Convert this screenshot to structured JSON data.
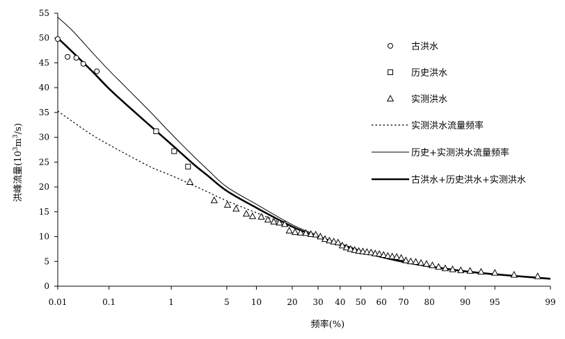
{
  "chart_data": {
    "type": "scatter",
    "title": "",
    "xlabel": "频率(%)",
    "ylabel_main": "洪峰流量(10",
    "ylabel_sup1": "3",
    "ylabel_mid": "m",
    "ylabel_sup2": "3",
    "ylabel_end": "/s)",
    "x_scale": "probability",
    "ylim": [
      0,
      55
    ],
    "y_ticks": [
      0,
      5,
      10,
      15,
      20,
      25,
      30,
      35,
      40,
      45,
      50,
      55
    ],
    "x_ticks": [
      {
        "value": 0.01,
        "label": "0.01"
      },
      {
        "value": 0.1,
        "label": "0.1"
      },
      {
        "value": 1,
        "label": "1"
      },
      {
        "value": 5,
        "label": "5"
      },
      {
        "value": 10,
        "label": "10"
      },
      {
        "value": 20,
        "label": "20"
      },
      {
        "value": 30,
        "label": "30"
      },
      {
        "value": 40,
        "label": "40"
      },
      {
        "value": 50,
        "label": "50"
      },
      {
        "value": 60,
        "label": "60"
      },
      {
        "value": 70,
        "label": "70"
      },
      {
        "value": 80,
        "label": "80"
      },
      {
        "value": 90,
        "label": "90"
      },
      {
        "value": 95,
        "label": "95"
      },
      {
        "value": 99,
        "label": "99"
      }
    ],
    "grid": false,
    "legend_position": "right",
    "series": [
      {
        "name": "古洪水",
        "kind": "points",
        "marker": "circle",
        "points": [
          [
            0.01,
            49.8
          ],
          [
            0.016,
            46.2
          ],
          [
            0.024,
            46.0
          ],
          [
            0.033,
            44.8
          ],
          [
            0.06,
            43.3
          ]
        ]
      },
      {
        "name": "历史洪水",
        "kind": "points",
        "marker": "square",
        "points": [
          [
            0.6,
            31.2
          ],
          [
            1.1,
            27.2
          ],
          [
            1.7,
            24.1
          ]
        ]
      },
      {
        "name": "实测洪水",
        "kind": "points",
        "marker": "triangle",
        "points": [
          [
            1.8,
            21.0
          ],
          [
            3.6,
            17.3
          ],
          [
            5.1,
            16.4
          ],
          [
            6.3,
            15.6
          ],
          [
            8.0,
            14.6
          ],
          [
            9.2,
            14.1
          ],
          [
            11.1,
            14.0
          ],
          [
            12.7,
            13.4
          ],
          [
            14.3,
            13.0
          ],
          [
            15.9,
            12.8
          ],
          [
            17.5,
            12.5
          ],
          [
            19.0,
            11.2
          ],
          [
            21.0,
            10.9
          ],
          [
            23.0,
            10.8
          ],
          [
            25.0,
            10.7
          ],
          [
            27.0,
            10.5
          ],
          [
            29.0,
            10.4
          ],
          [
            31.0,
            10.0
          ],
          [
            33.0,
            9.5
          ],
          [
            35.0,
            9.2
          ],
          [
            37.0,
            9.0
          ],
          [
            39.0,
            8.8
          ],
          [
            41.0,
            8.2
          ],
          [
            43.0,
            7.8
          ],
          [
            45.0,
            7.5
          ],
          [
            47.0,
            7.3
          ],
          [
            49.0,
            7.1
          ],
          [
            51.0,
            7.0
          ],
          [
            53.0,
            6.9
          ],
          [
            55.0,
            6.8
          ],
          [
            57.0,
            6.6
          ],
          [
            59.0,
            6.5
          ],
          [
            61.0,
            6.3
          ],
          [
            63.0,
            6.1
          ],
          [
            65.0,
            6.0
          ],
          [
            67.0,
            5.9
          ],
          [
            69.0,
            5.7
          ],
          [
            71.0,
            5.2
          ],
          [
            73.0,
            5.0
          ],
          [
            75.0,
            4.9
          ],
          [
            77.0,
            4.7
          ],
          [
            79.0,
            4.5
          ],
          [
            81.0,
            4.2
          ],
          [
            83.0,
            3.9
          ],
          [
            85.0,
            3.6
          ],
          [
            87.0,
            3.4
          ],
          [
            89.0,
            3.2
          ],
          [
            91.0,
            3.1
          ],
          [
            93.0,
            2.9
          ],
          [
            95.0,
            2.7
          ],
          [
            97.0,
            2.3
          ],
          [
            98.5,
            2.0
          ]
        ]
      },
      {
        "name": "实测洪水流量频率",
        "kind": "line",
        "style": "dotted",
        "points": [
          [
            0.01,
            35.3
          ],
          [
            0.02,
            33.2
          ],
          [
            0.05,
            30.4
          ],
          [
            0.1,
            28.5
          ],
          [
            0.2,
            26.6
          ],
          [
            0.5,
            24.0
          ],
          [
            1,
            22.3
          ],
          [
            2,
            20.3
          ],
          [
            3,
            19.0
          ],
          [
            5,
            17.2
          ],
          [
            10,
            14.8
          ],
          [
            20,
            11.9
          ],
          [
            30,
            10.0
          ],
          [
            40,
            8.6
          ],
          [
            50,
            7.2
          ],
          [
            60,
            6.1
          ],
          [
            70,
            5.0
          ],
          [
            80,
            4.1
          ],
          [
            90,
            3.0
          ],
          [
            95,
            2.4
          ],
          [
            99,
            1.5
          ]
        ]
      },
      {
        "name": "历史+实测洪水流量频率",
        "kind": "line",
        "style": "thin",
        "points": [
          [
            0.01,
            54.2
          ],
          [
            0.02,
            51.5
          ],
          [
            0.05,
            47.0
          ],
          [
            0.1,
            43.5
          ],
          [
            0.2,
            40.0
          ],
          [
            0.5,
            35.0
          ],
          [
            1,
            30.7
          ],
          [
            2,
            26.2
          ],
          [
            3,
            23.5
          ],
          [
            5,
            20.0
          ],
          [
            10,
            16.5
          ],
          [
            20,
            12.4
          ],
          [
            30,
            10.2
          ],
          [
            40,
            8.5
          ],
          [
            50,
            7.1
          ],
          [
            60,
            6.0
          ],
          [
            70,
            5.0
          ],
          [
            80,
            4.1
          ],
          [
            90,
            3.0
          ],
          [
            95,
            2.4
          ],
          [
            99,
            1.5
          ]
        ]
      },
      {
        "name": "古洪水+历史洪水+实测洪水",
        "kind": "line",
        "style": "thick",
        "points": [
          [
            0.01,
            50.0
          ],
          [
            0.02,
            47.2
          ],
          [
            0.05,
            43.2
          ],
          [
            0.1,
            39.8
          ],
          [
            0.2,
            36.6
          ],
          [
            0.5,
            32.2
          ],
          [
            1,
            28.6
          ],
          [
            2,
            24.6
          ],
          [
            3,
            22.3
          ],
          [
            5,
            19.2
          ],
          [
            10,
            15.8
          ],
          [
            20,
            12.0
          ],
          [
            30,
            9.9
          ],
          [
            40,
            8.3
          ],
          [
            50,
            7.0
          ],
          [
            60,
            5.9
          ],
          [
            70,
            4.9
          ],
          [
            80,
            4.0
          ],
          [
            90,
            3.0
          ],
          [
            95,
            2.4
          ],
          [
            99,
            1.5
          ]
        ]
      }
    ]
  }
}
